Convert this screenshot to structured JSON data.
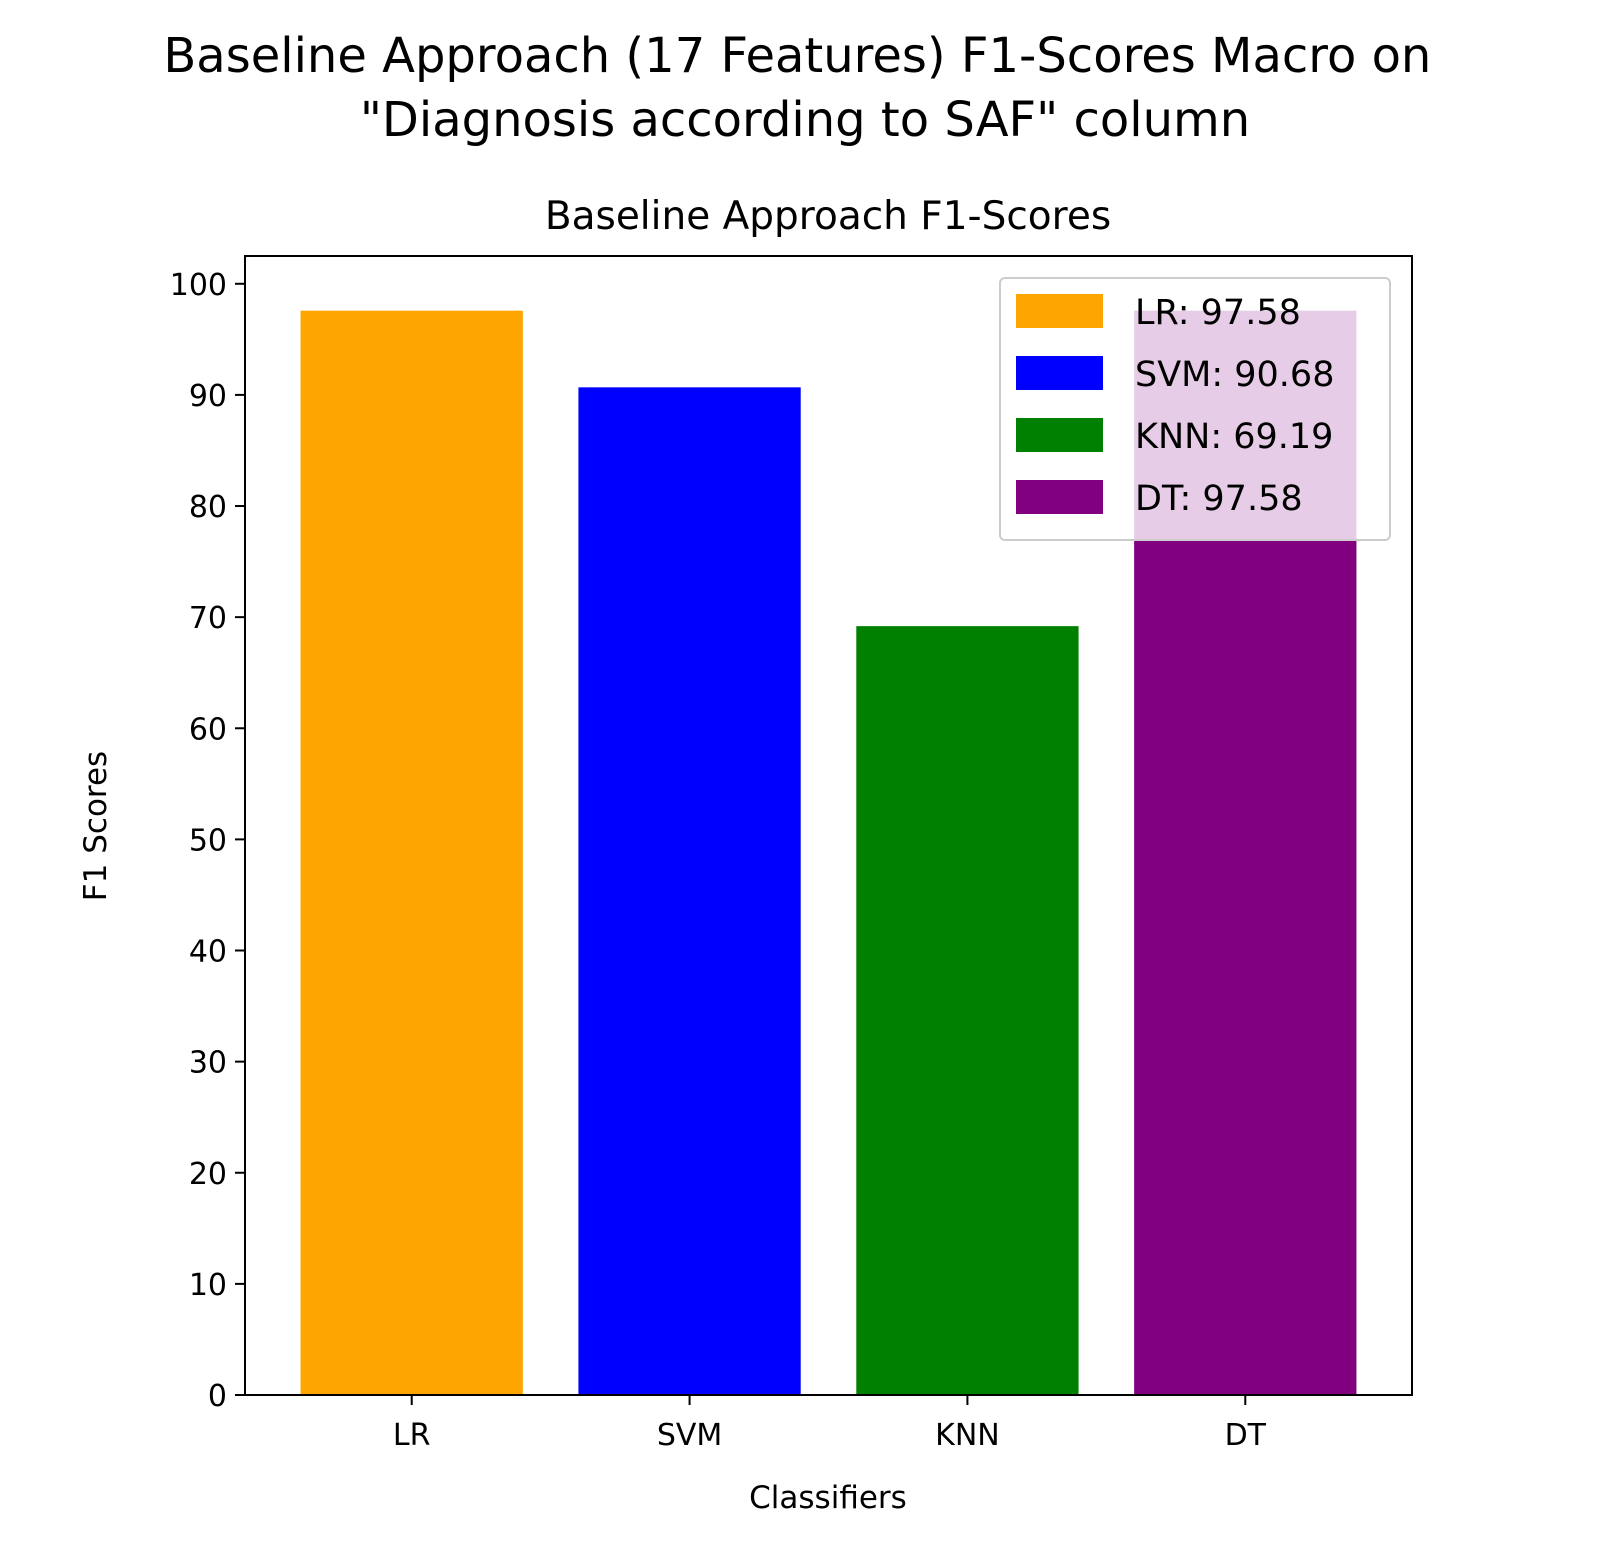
{
  "chart_data": {
    "type": "bar",
    "suptitle_lines": [
      "Baseline Approach (17 Features) F1-Scores Macro on",
      "\"Diagnosis according to SAF\" column"
    ],
    "title": "Baseline Approach F1-Scores",
    "xlabel": "Classifiers",
    "ylabel": "F1 Scores",
    "categories": [
      "LR",
      "SVM",
      "KNN",
      "DT"
    ],
    "values": [
      97.58,
      90.68,
      69.19,
      97.58
    ],
    "colors": [
      "#FFA500",
      "#0000FF",
      "#008000",
      "#800080"
    ],
    "ylim": [
      0,
      102.5
    ],
    "yticks": [
      0,
      10,
      20,
      30,
      40,
      50,
      60,
      70,
      80,
      90,
      100
    ],
    "grid": false,
    "legend": {
      "placement": "top-right",
      "entries": [
        "LR: 97.58",
        "SVM: 90.68",
        "KNN: 69.19",
        "DT: 97.58"
      ]
    }
  }
}
